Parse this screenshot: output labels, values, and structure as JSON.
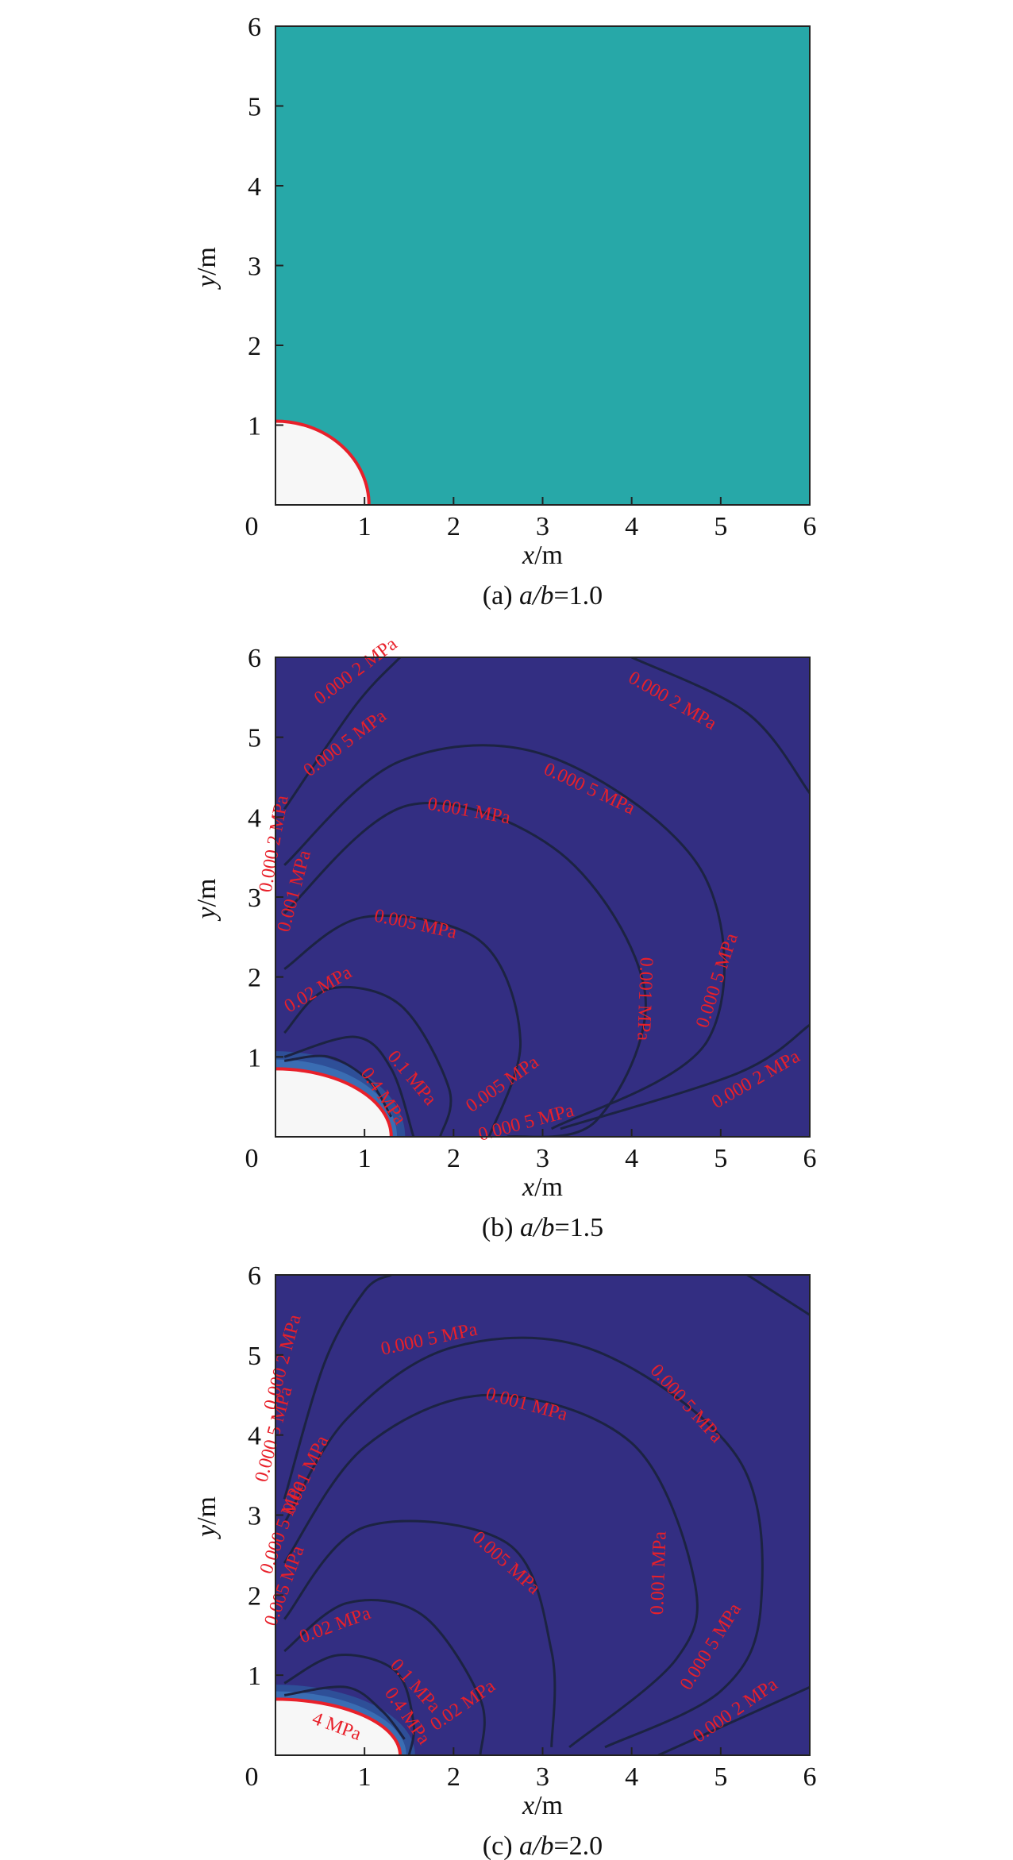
{
  "chart_data": [
    {
      "type": "contour",
      "panel": "a",
      "caption_prefix": "(a) ",
      "caption_var": "a/b",
      "caption_value": "=1.0",
      "xlabel_var": "x",
      "xlabel_unit": "/m",
      "ylabel_var": "y",
      "ylabel_unit": "/m",
      "xlim": [
        0,
        6
      ],
      "ylim": [
        0,
        6
      ],
      "xticks": [
        "0",
        "1",
        "2",
        "3",
        "4",
        "5",
        "6"
      ],
      "yticks": [
        "1",
        "2",
        "3",
        "4",
        "5",
        "6"
      ],
      "hole": {
        "a": 1.05,
        "b": 1.05
      },
      "fill_color": "#27a8a8",
      "contours": [],
      "contour_labels": []
    },
    {
      "type": "contour",
      "panel": "b",
      "caption_prefix": "(b) ",
      "caption_var": "a/b",
      "caption_value": "=1.5",
      "xlabel_var": "x",
      "xlabel_unit": "/m",
      "ylabel_var": "y",
      "ylabel_unit": "/m",
      "xlim": [
        0,
        6
      ],
      "ylim": [
        0,
        6
      ],
      "xticks": [
        "0",
        "1",
        "2",
        "3",
        "4",
        "5",
        "6"
      ],
      "yticks": [
        "1",
        "2",
        "3",
        "4",
        "5",
        "6"
      ],
      "hole": {
        "a": 1.3,
        "b": 0.85
      },
      "fill_color": "#332e82",
      "contours": [
        {
          "level": "0.4 MPa",
          "points": [
            [
              0.1,
              0.95
            ],
            [
              0.6,
              1.0
            ],
            [
              1.05,
              0.7
            ],
            [
              1.3,
              0.25
            ]
          ]
        },
        {
          "level": "0.1 MPa",
          "points": [
            [
              0.1,
              1.0
            ],
            [
              0.9,
              1.25
            ],
            [
              1.3,
              0.85
            ],
            [
              1.55,
              0.0
            ]
          ]
        },
        {
          "level": "0.02 MPa",
          "points": [
            [
              0.1,
              1.3
            ],
            [
              0.6,
              1.85
            ],
            [
              1.4,
              1.65
            ],
            [
              1.95,
              0.6
            ],
            [
              1.85,
              0.0
            ]
          ]
        },
        {
          "level": "0.005 MPa",
          "points": [
            [
              0.1,
              2.1
            ],
            [
              1.0,
              2.75
            ],
            [
              2.3,
              2.45
            ],
            [
              2.75,
              1.2
            ],
            [
              2.4,
              0.0
            ]
          ]
        },
        {
          "level": "0.001 MPa",
          "points": [
            [
              0.1,
              2.8
            ],
            [
              1.5,
              4.15
            ],
            [
              3.2,
              3.55
            ],
            [
              4.15,
              1.8
            ],
            [
              3.6,
              0.2
            ],
            [
              2.6,
              0.0
            ]
          ]
        },
        {
          "level": "0.000 5 MPa",
          "points": [
            [
              0.1,
              3.4
            ],
            [
              1.4,
              4.7
            ],
            [
              3.1,
              4.75
            ],
            [
              4.8,
              3.3
            ],
            [
              4.85,
              1.2
            ],
            [
              3.1,
              0.1
            ]
          ]
        },
        {
          "level": "0.000 2 MPa",
          "points": [
            [
              0.1,
              4.1
            ],
            [
              0.9,
              5.4
            ],
            [
              1.4,
              6.0
            ]
          ]
        },
        {
          "level": "0.000 2 MPa",
          "points": [
            [
              4.0,
              6.0
            ],
            [
              5.3,
              5.3
            ],
            [
              6.0,
              4.3
            ]
          ]
        },
        {
          "level": "0.000 2 MPa",
          "points": [
            [
              3.2,
              0.1
            ],
            [
              5.2,
              0.8
            ],
            [
              6.0,
              1.4
            ]
          ]
        }
      ],
      "contour_labels": [
        {
          "text": "0.000 2 MPa",
          "x": 0.5,
          "y": 5.4,
          "rot": -37
        },
        {
          "text": "0.000 2 MPa",
          "x": 3.95,
          "y": 5.7,
          "rot": 30
        },
        {
          "text": "0.000 5 MPa",
          "x": 0.38,
          "y": 4.5,
          "rot": -37
        },
        {
          "text": "0.000 5 MPa",
          "x": 3.0,
          "y": 4.55,
          "rot": 25
        },
        {
          "text": "0.001 MPa",
          "x": 1.7,
          "y": 4.1,
          "rot": 10
        },
        {
          "text": "0.000 2 MPa",
          "x": -0.05,
          "y": 3.05,
          "rot": -80
        },
        {
          "text": "0.001 MPa",
          "x": 0.15,
          "y": 2.55,
          "rot": -75
        },
        {
          "text": "0.005 MPa",
          "x": 1.1,
          "y": 2.7,
          "rot": 12
        },
        {
          "text": "0.02 MPa",
          "x": 0.15,
          "y": 1.55,
          "rot": -30
        },
        {
          "text": "0.001 MPa",
          "x": 4.1,
          "y": 2.25,
          "rot": 92
        },
        {
          "text": "0.000 5 MPa",
          "x": 4.85,
          "y": 1.35,
          "rot": -72
        },
        {
          "text": "0.000 2 MPa",
          "x": 4.95,
          "y": 0.35,
          "rot": -30
        },
        {
          "text": "0.1 MPa",
          "x": 1.25,
          "y": 1.0,
          "rot": 50
        },
        {
          "text": "0.4 MPa",
          "x": 0.95,
          "y": 0.8,
          "rot": 55
        },
        {
          "text": "0.005 MPa",
          "x": 2.2,
          "y": 0.3,
          "rot": -35
        },
        {
          "text": "0.000 5 MPa",
          "x": 2.3,
          "y": -0.05,
          "rot": -15
        }
      ]
    },
    {
      "type": "contour",
      "panel": "c",
      "caption_prefix": "(c) ",
      "caption_var": "a/b",
      "caption_value": "=2.0",
      "xlabel_var": "x",
      "xlabel_unit": "/m",
      "ylabel_var": "y",
      "ylabel_unit": "/m",
      "xlim": [
        0,
        6
      ],
      "ylim": [
        0,
        6
      ],
      "xticks": [
        "0",
        "1",
        "2",
        "3",
        "4",
        "5",
        "6"
      ],
      "yticks": [
        "1",
        "2",
        "3",
        "4",
        "5",
        "6"
      ],
      "hole": {
        "a": 1.4,
        "b": 0.7
      },
      "fill_color": "#332e82",
      "contours": [
        {
          "level": "0.4 MPa",
          "points": [
            [
              0.1,
              0.75
            ],
            [
              0.8,
              0.85
            ],
            [
              1.2,
              0.55
            ],
            [
              1.45,
              0.2
            ]
          ]
        },
        {
          "level": "0.1 MPa",
          "points": [
            [
              0.1,
              0.9
            ],
            [
              0.7,
              1.25
            ],
            [
              1.35,
              1.05
            ],
            [
              1.55,
              0.4
            ],
            [
              1.5,
              0.0
            ]
          ]
        },
        {
          "level": "0.02 MPa",
          "points": [
            [
              0.1,
              1.3
            ],
            [
              0.8,
              1.9
            ],
            [
              1.65,
              1.75
            ],
            [
              2.3,
              0.7
            ],
            [
              2.3,
              0.0
            ]
          ]
        },
        {
          "level": "0.005 MPa",
          "points": [
            [
              0.1,
              1.7
            ],
            [
              1.0,
              2.85
            ],
            [
              2.6,
              2.65
            ],
            [
              3.1,
              1.3
            ],
            [
              3.1,
              0.1
            ]
          ]
        },
        {
          "level": "0.001 MPa",
          "points": [
            [
              0.1,
              2.4
            ],
            [
              1.0,
              3.85
            ],
            [
              2.4,
              4.5
            ],
            [
              4.0,
              3.9
            ],
            [
              4.7,
              2.2
            ],
            [
              4.5,
              1.2
            ],
            [
              3.3,
              0.1
            ]
          ]
        },
        {
          "level": "0.000 5 MPa",
          "points": [
            [
              0.1,
              2.9
            ],
            [
              0.8,
              4.2
            ],
            [
              2.0,
              5.1
            ],
            [
              3.6,
              5.05
            ],
            [
              5.2,
              3.7
            ],
            [
              5.45,
              1.85
            ],
            [
              5.0,
              0.8
            ],
            [
              3.7,
              0.1
            ]
          ]
        },
        {
          "level": "0.000 2 MPa",
          "points": [
            [
              0.1,
              3.2
            ],
            [
              0.55,
              4.9
            ],
            [
              1.0,
              5.8
            ],
            [
              1.3,
              6.0
            ]
          ]
        },
        {
          "level": "0.000 2 MPa",
          "points": [
            [
              5.3,
              6.0
            ],
            [
              6.0,
              5.5
            ]
          ]
        },
        {
          "level": "0.000 2 MPa",
          "points": [
            [
              4.3,
              0.0
            ],
            [
              5.5,
              0.6
            ],
            [
              6.0,
              0.85
            ]
          ]
        }
      ],
      "contour_labels": [
        {
          "text": "0.000 5 MPa",
          "x": 1.2,
          "y": 5.0,
          "rot": -12
        },
        {
          "text": "0.001 MPa",
          "x": 2.35,
          "y": 4.45,
          "rot": 15
        },
        {
          "text": "0.000 5 MPa",
          "x": 4.2,
          "y": 4.8,
          "rot": 48
        },
        {
          "text": "0.000 2 MPa",
          "x": 0.0,
          "y": 4.3,
          "rot": -75
        },
        {
          "text": "0.000 5 MPa",
          "x": -0.1,
          "y": 3.4,
          "rot": -75
        },
        {
          "text": "0.001 MPa",
          "x": 0.2,
          "y": 3.0,
          "rot": -65
        },
        {
          "text": "0.000 5 MPa",
          "x": -0.05,
          "y": 2.25,
          "rot": -70
        },
        {
          "text": "0.005 MPa",
          "x": 0.0,
          "y": 1.6,
          "rot": -70
        },
        {
          "text": "0.02 MPa",
          "x": 0.3,
          "y": 1.4,
          "rot": -20
        },
        {
          "text": "0.005 MPa",
          "x": 2.2,
          "y": 2.7,
          "rot": 42
        },
        {
          "text": "0.001 MPa",
          "x": 4.35,
          "y": 1.75,
          "rot": -88
        },
        {
          "text": "0.000 5 MPa",
          "x": 4.65,
          "y": 0.8,
          "rot": -58
        },
        {
          "text": "0.000 2 MPa",
          "x": 4.75,
          "y": 0.15,
          "rot": -35
        },
        {
          "text": "0.1 MPa",
          "x": 1.28,
          "y": 1.12,
          "rot": 48
        },
        {
          "text": "0.4 MPa",
          "x": 1.22,
          "y": 0.78,
          "rot": 55
        },
        {
          "text": "4 MPa",
          "x": 0.4,
          "y": 0.4,
          "rot": 20
        },
        {
          "text": "0.02 MPa",
          "x": 1.8,
          "y": 0.3,
          "rot": -35
        }
      ]
    }
  ]
}
